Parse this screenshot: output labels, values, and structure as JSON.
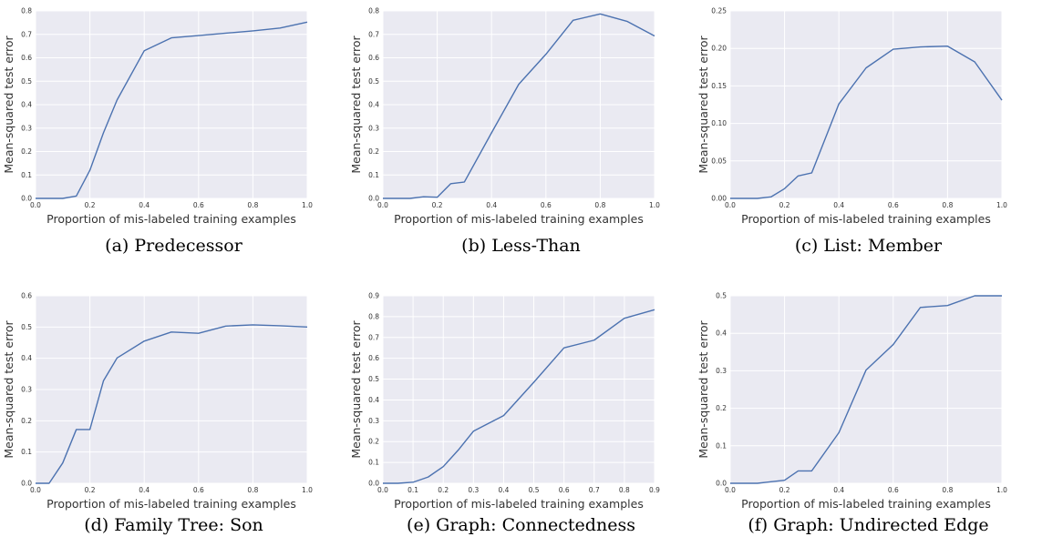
{
  "style": {
    "plot_bg": "#eaeaf2",
    "grid": "#ffffff",
    "line": "#4c72b0"
  },
  "panels": [
    {
      "label": "(a)",
      "caption": "Predecessor"
    },
    {
      "label": "(b)",
      "caption": "Less-Than"
    },
    {
      "label": "(c)",
      "caption": "List:  Member"
    },
    {
      "label": "(d)",
      "caption": "Family Tree:  Son"
    },
    {
      "label": "(e)",
      "caption": "Graph:  Connectedness"
    },
    {
      "label": "(f)",
      "caption": "Graph:  Undirected Edge"
    }
  ],
  "chart_data": [
    {
      "type": "line",
      "xlabel": "Proportion of mis-labeled training examples",
      "ylabel": "Mean-squared test error",
      "xlim": [
        0,
        1
      ],
      "ylim": [
        0,
        0.8
      ],
      "grid": true,
      "xticks": [
        0,
        0.2,
        0.4,
        0.6,
        0.8,
        1
      ],
      "xtick_labels": [
        "0.0",
        "0.2",
        "0.4",
        "0.6",
        "0.8",
        "1.0"
      ],
      "yticks": [
        0,
        0.1,
        0.2,
        0.3,
        0.4,
        0.5,
        0.6,
        0.7,
        0.8
      ],
      "ytick_labels": [
        "0.0",
        "0.1",
        "0.2",
        "0.3",
        "0.4",
        "0.5",
        "0.6",
        "0.7",
        "0.8"
      ],
      "x": [
        0,
        0.05,
        0.1,
        0.15,
        0.2,
        0.25,
        0.3,
        0.4,
        0.5,
        0.6,
        0.7,
        0.8,
        0.9,
        1.0
      ],
      "y": [
        0,
        0,
        0,
        0.01,
        0.12,
        0.28,
        0.42,
        0.63,
        0.685,
        0.695,
        0.705,
        0.715,
        0.727,
        0.752
      ]
    },
    {
      "type": "line",
      "xlabel": "Proportion of mis-labeled training examples",
      "ylabel": "Mean-squared test error",
      "xlim": [
        0,
        1
      ],
      "ylim": [
        0,
        0.8
      ],
      "grid": true,
      "xticks": [
        0,
        0.2,
        0.4,
        0.6,
        0.8,
        1
      ],
      "xtick_labels": [
        "0.0",
        "0.2",
        "0.4",
        "0.6",
        "0.8",
        "1.0"
      ],
      "yticks": [
        0,
        0.1,
        0.2,
        0.3,
        0.4,
        0.5,
        0.6,
        0.7,
        0.8
      ],
      "ytick_labels": [
        "0.0",
        "0.1",
        "0.2",
        "0.3",
        "0.4",
        "0.5",
        "0.6",
        "0.7",
        "0.8"
      ],
      "x": [
        0,
        0.05,
        0.1,
        0.15,
        0.2,
        0.25,
        0.3,
        0.4,
        0.5,
        0.6,
        0.7,
        0.8,
        0.9,
        1.0
      ],
      "y": [
        0,
        0,
        0,
        0.007,
        0.005,
        0.063,
        0.07,
        0.28,
        0.487,
        0.615,
        0.76,
        0.787,
        0.755,
        0.693
      ]
    },
    {
      "type": "line",
      "xlabel": "Proportion of mis-labeled training examples",
      "ylabel": "Mean-squared test error",
      "xlim": [
        0,
        1
      ],
      "ylim": [
        0,
        0.25
      ],
      "grid": true,
      "xticks": [
        0,
        0.2,
        0.4,
        0.6,
        0.8,
        1
      ],
      "xtick_labels": [
        "0.0",
        "0.2",
        "0.4",
        "0.6",
        "0.8",
        "1.0"
      ],
      "yticks": [
        0,
        0.05,
        0.1,
        0.15,
        0.2,
        0.25
      ],
      "ytick_labels": [
        "0.00",
        "0.05",
        "0.10",
        "0.15",
        "0.20",
        "0.25"
      ],
      "x": [
        0,
        0.05,
        0.1,
        0.15,
        0.2,
        0.25,
        0.3,
        0.4,
        0.5,
        0.6,
        0.7,
        0.8,
        0.9,
        1.0
      ],
      "y": [
        0,
        0,
        0,
        0.002,
        0.013,
        0.03,
        0.034,
        0.126,
        0.174,
        0.199,
        0.202,
        0.203,
        0.182,
        0.131
      ]
    },
    {
      "type": "line",
      "xlabel": "Proportion of mis-labeled training examples",
      "ylabel": "Mean-squared test error",
      "xlim": [
        0,
        1
      ],
      "ylim": [
        0,
        0.6
      ],
      "grid": true,
      "xticks": [
        0,
        0.2,
        0.4,
        0.6,
        0.8,
        1
      ],
      "xtick_labels": [
        "0.0",
        "0.2",
        "0.4",
        "0.6",
        "0.8",
        "1.0"
      ],
      "yticks": [
        0,
        0.1,
        0.2,
        0.3,
        0.4,
        0.5,
        0.6
      ],
      "ytick_labels": [
        "0.0",
        "0.1",
        "0.2",
        "0.3",
        "0.4",
        "0.5",
        "0.6"
      ],
      "x": [
        0,
        0.05,
        0.1,
        0.15,
        0.2,
        0.25,
        0.3,
        0.4,
        0.5,
        0.6,
        0.7,
        0.8,
        0.9,
        1.0
      ],
      "y": [
        0,
        0,
        0.065,
        0.172,
        0.172,
        0.328,
        0.401,
        0.455,
        0.484,
        0.48,
        0.503,
        0.507,
        0.504,
        0.5
      ]
    },
    {
      "type": "line",
      "xlabel": "Proportion of mis-labeled training examples",
      "ylabel": "Mean-squared test error",
      "xlim": [
        0,
        0.9
      ],
      "ylim": [
        0,
        0.9
      ],
      "grid": true,
      "xticks": [
        0,
        0.1,
        0.2,
        0.3,
        0.4,
        0.5,
        0.6,
        0.7,
        0.8,
        0.9
      ],
      "xtick_labels": [
        "0.0",
        "0.1",
        "0.2",
        "0.3",
        "0.4",
        "0.5",
        "0.6",
        "0.7",
        "0.8",
        "0.9"
      ],
      "yticks": [
        0,
        0.1,
        0.2,
        0.3,
        0.4,
        0.5,
        0.6,
        0.7,
        0.8,
        0.9
      ],
      "ytick_labels": [
        "0.0",
        "0.1",
        "0.2",
        "0.3",
        "0.4",
        "0.5",
        "0.6",
        "0.7",
        "0.8",
        "0.9"
      ],
      "x": [
        0,
        0.05,
        0.1,
        0.15,
        0.2,
        0.25,
        0.3,
        0.4,
        0.5,
        0.6,
        0.7,
        0.8,
        0.9
      ],
      "y": [
        0,
        0,
        0.005,
        0.03,
        0.08,
        0.16,
        0.25,
        0.325,
        0.485,
        0.65,
        0.687,
        0.792,
        0.833
      ]
    },
    {
      "type": "line",
      "xlabel": "Proportion of mis-labeled training examples",
      "ylabel": "Mean-squared test error",
      "xlim": [
        0,
        1
      ],
      "ylim": [
        0,
        0.5
      ],
      "grid": true,
      "xticks": [
        0,
        0.2,
        0.4,
        0.6,
        0.8,
        1
      ],
      "xtick_labels": [
        "0.0",
        "0.2",
        "0.4",
        "0.6",
        "0.8",
        "1.0"
      ],
      "yticks": [
        0,
        0.1,
        0.2,
        0.3,
        0.4,
        0.5
      ],
      "ytick_labels": [
        "0.0",
        "0.1",
        "0.2",
        "0.3",
        "0.4",
        "0.5"
      ],
      "x": [
        0,
        0.05,
        0.1,
        0.15,
        0.2,
        0.25,
        0.3,
        0.4,
        0.5,
        0.6,
        0.7,
        0.8,
        0.9,
        1.0
      ],
      "y": [
        0,
        0,
        0,
        0.004,
        0.008,
        0.033,
        0.033,
        0.135,
        0.302,
        0.37,
        0.469,
        0.474,
        0.5,
        0.5
      ]
    }
  ]
}
